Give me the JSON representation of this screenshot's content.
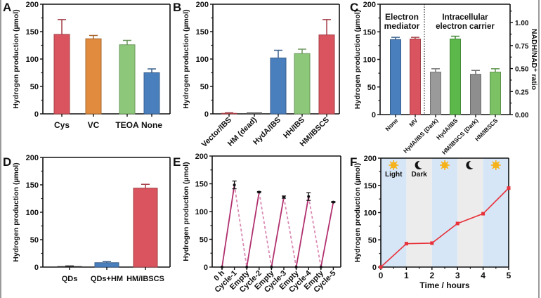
{
  "chart_data": [
    {
      "panel": "A",
      "type": "bar",
      "ylabel": "Hydrogen production (µmol)",
      "ylim": [
        0,
        200
      ],
      "yticks": [
        0,
        50,
        100,
        150,
        200
      ],
      "categories": [
        "Cys",
        "VC",
        "TEOA",
        "None"
      ],
      "values": [
        145,
        137,
        126,
        75
      ],
      "errors": [
        27,
        6,
        8,
        7
      ],
      "colors": [
        "#d9545e",
        "#e08b3e",
        "#8dc87a",
        "#4a7fbd"
      ]
    },
    {
      "panel": "B",
      "type": "bar",
      "ylabel": "Hydrogen production (µmol)",
      "ylim": [
        0,
        200
      ],
      "yticks": [
        0,
        50,
        100,
        150,
        200
      ],
      "categories": [
        "Vector/IBS",
        "HM (dead)",
        "HydA/IBS",
        "HH/IBS",
        "HM/IBSCS"
      ],
      "values": [
        1,
        0,
        102,
        110,
        144
      ],
      "errors": [
        1,
        0,
        14,
        8,
        28
      ],
      "colors": [
        "#d9545e",
        "#555555",
        "#4a7fbd",
        "#8dc87a",
        "#d9545e"
      ]
    },
    {
      "panel": "C",
      "type": "bar",
      "ylabel": "Hydrogen production (µmol)",
      "y2label": "NADH/NAD⁺ ratio",
      "ylim": [
        0,
        200
      ],
      "yticks": [
        0,
        50,
        100,
        150,
        200
      ],
      "y2lim": [
        0,
        1.2
      ],
      "y2ticks": [
        "0.00",
        "0.25",
        "0.50",
        "0.75",
        "1.00"
      ],
      "groups": [
        "Electron mediator",
        "Intracellular electron carrier"
      ],
      "group_labels": [
        [
          "Electron",
          "mediator"
        ],
        [
          "Intracellular",
          "electron carrier"
        ]
      ],
      "categories": [
        "None",
        "MV",
        "HydA/IBS (Dark)",
        "HydA/IBS",
        "HM/IBSCS (Dark)",
        "HM/IBSCS"
      ],
      "values": [
        136,
        137,
        77,
        137,
        73,
        77
      ],
      "errors": [
        4,
        3,
        6,
        5,
        7,
        6
      ],
      "colors": [
        "#4a7fbd",
        "#d9545e",
        "#9a9a9a",
        "#5cb84a",
        "#8e8e8e",
        "#7cc265"
      ]
    },
    {
      "panel": "D",
      "type": "bar",
      "ylabel": "Hydrogen production (µmol)",
      "ylim": [
        0,
        200
      ],
      "yticks": [
        0,
        50,
        100,
        150,
        200
      ],
      "categories": [
        "QDs",
        "QDs+HM",
        "HM/IBSCS"
      ],
      "values": [
        1,
        8,
        144
      ],
      "errors": [
        1,
        2,
        7
      ],
      "colors": [
        "#333333",
        "#4a7fbd",
        "#d9545e"
      ]
    },
    {
      "panel": "E",
      "type": "line",
      "ylabel": "Hydrogen production (µmol)",
      "ylim": [
        0,
        200
      ],
      "yticks": [
        0,
        50,
        100,
        150,
        200
      ],
      "categories": [
        "0 h",
        "Cycle-1",
        "Empty",
        "Cycle-2",
        "Empty",
        "Cycle-3",
        "Empty",
        "Cycle-4",
        "Empty",
        "Cycle-5"
      ],
      "values": [
        0,
        148,
        0,
        135,
        0,
        126,
        0,
        127,
        0,
        117
      ],
      "errors": [
        0,
        7,
        0,
        1,
        0,
        2,
        0,
        7,
        0,
        1
      ],
      "color": "#b0306e",
      "dashed_color": "#d98ab4"
    },
    {
      "panel": "F",
      "type": "line",
      "ylabel": "Hydrogen production (µmol)",
      "xlabel": "Time / hours",
      "ylim": [
        0,
        200
      ],
      "xlim": [
        0,
        5
      ],
      "yticks": [
        0,
        50,
        100,
        150,
        200
      ],
      "xticks": [
        0,
        1,
        2,
        3,
        4,
        5
      ],
      "x": [
        0,
        1,
        2,
        3,
        4,
        5
      ],
      "values": [
        0,
        43,
        44,
        80,
        98,
        145
      ],
      "color": "#e8313a",
      "phases": [
        "Light",
        "Dark",
        "Light",
        "Dark",
        "Light"
      ],
      "phase_labels": [
        "Light",
        "Dark"
      ],
      "light_color": "#d6e6f6",
      "dark_color": "#ececec",
      "sun_color": "#f6b21b"
    }
  ]
}
